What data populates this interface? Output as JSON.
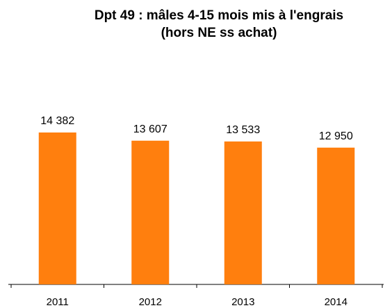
{
  "chart_data": {
    "type": "bar",
    "title": [
      "Dpt 49 : mâles 4-15 mois mis à l'engrais",
      "(hors NE ss achat)"
    ],
    "categories": [
      "2011",
      "2012",
      "2013",
      "2014"
    ],
    "values": [
      14382,
      13607,
      13533,
      12950
    ],
    "value_labels": [
      "14 382",
      "13 607",
      "13 533",
      "12 950"
    ],
    "color": "#ff7f0e"
  }
}
